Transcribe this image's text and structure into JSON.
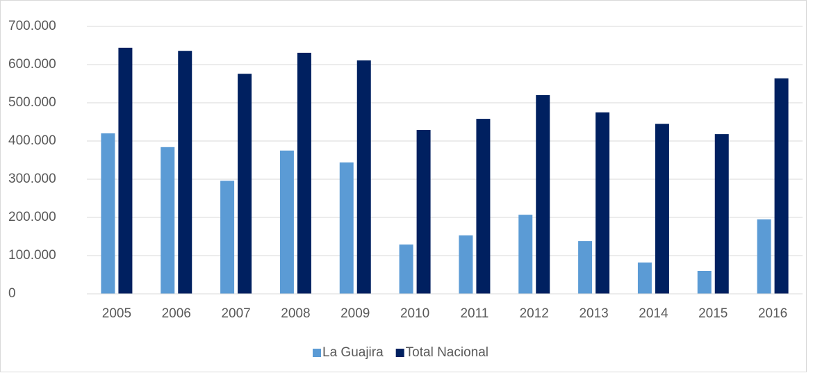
{
  "chart_data": {
    "type": "bar",
    "categories": [
      "2005",
      "2006",
      "2007",
      "2008",
      "2009",
      "2010",
      "2011",
      "2012",
      "2013",
      "2014",
      "2015",
      "2016"
    ],
    "series": [
      {
        "name": "La Guajira",
        "color": "#5b9bd5",
        "values": [
          420000,
          384000,
          296000,
          375000,
          344000,
          129000,
          153000,
          207000,
          138000,
          82000,
          60000,
          195000
        ]
      },
      {
        "name": "Total Nacional",
        "color": "#002060",
        "values": [
          644000,
          636000,
          576000,
          631000,
          611000,
          429000,
          458000,
          520000,
          475000,
          445000,
          418000,
          564000
        ]
      }
    ],
    "ylim": [
      0,
      700000
    ],
    "yticks": [
      0,
      {
        "value": 100000,
        "label": "100.000"
      },
      {
        "value": 200000,
        "label": "200.000"
      },
      {
        "value": 300000,
        "label": "300.000"
      },
      {
        "value": 400000,
        "label": "400.000"
      },
      {
        "value": 500000,
        "label": "500.000"
      },
      {
        "value": 600000,
        "label": "600.000"
      },
      {
        "value": 700000,
        "label": "700.000"
      }
    ],
    "grid": true,
    "legend": "bottom"
  }
}
